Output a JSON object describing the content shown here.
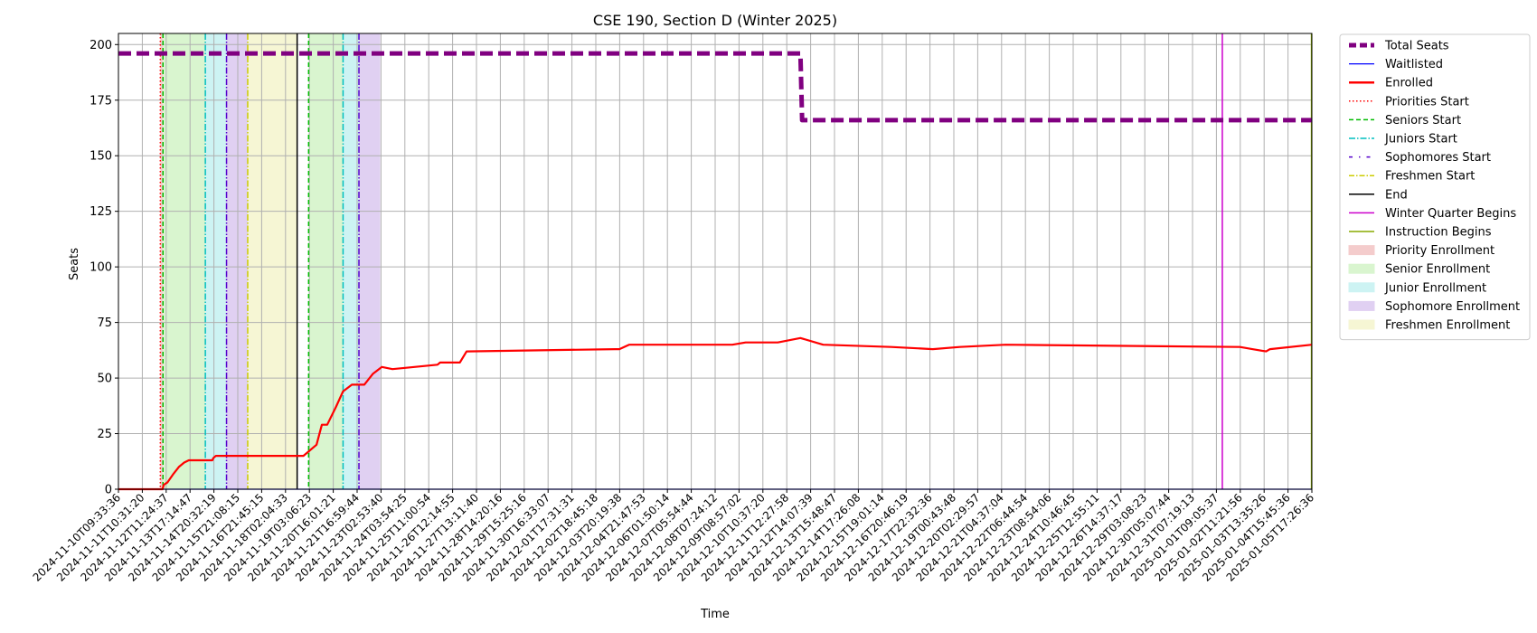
{
  "chart_data": {
    "type": "line",
    "title": "CSE 190, Section D (Winter 2025)",
    "xlabel": "Time",
    "ylabel": "Seats",
    "ylim": [
      0,
      205
    ],
    "yticks": [
      0,
      25,
      50,
      75,
      100,
      125,
      150,
      175,
      200
    ],
    "x_start": "2024-11-10T09:33:36",
    "x_end": "2025-01-05T17:26:36",
    "grid": true,
    "legend_position": "outside-right",
    "xtick_labels": [
      "2024-11-10T09:33:36",
      "2024-11-11T10:31:20",
      "2024-11-12T11:24:37",
      "2024-11-13T17:14:47",
      "2024-11-14T20:32:19",
      "2024-11-15T21:08:15",
      "2024-11-16T21:45:15",
      "2024-11-18T02:04:33",
      "2024-11-19T03:06:23",
      "2024-11-20T16:01:21",
      "2024-11-21T16:59:44",
      "2024-11-23T02:53:40",
      "2024-11-24T03:54:25",
      "2024-11-25T11:00:54",
      "2024-11-26T12:14:55",
      "2024-11-27T13:11:40",
      "2024-11-28T14:20:16",
      "2024-11-29T15:25:16",
      "2024-11-30T16:33:07",
      "2024-12-01T17:31:31",
      "2024-12-02T18:45:18",
      "2024-12-03T20:19:38",
      "2024-12-04T21:47:53",
      "2024-12-06T01:50:14",
      "2024-12-07T05:54:44",
      "2024-12-08T07:24:12",
      "2024-12-09T08:57:02",
      "2024-12-10T10:37:20",
      "2024-12-11T12:27:58",
      "2024-12-12T14:07:39",
      "2024-12-13T15:48:47",
      "2024-12-14T17:26:08",
      "2024-12-15T19:01:14",
      "2024-12-16T20:46:19",
      "2024-12-17T22:32:36",
      "2024-12-19T00:43:48",
      "2024-12-20T02:29:57",
      "2024-12-21T04:37:04",
      "2024-12-22T06:44:54",
      "2024-12-23T08:54:06",
      "2024-12-24T10:46:45",
      "2024-12-25T12:55:11",
      "2024-12-26T14:37:17",
      "2024-12-29T03:08:23",
      "2024-12-30T05:07:44",
      "2024-12-31T07:19:13",
      "2025-01-01T09:05:37",
      "2025-01-02T11:21:56",
      "2025-01-03T13:35:26",
      "2025-01-04T15:45:36",
      "2025-01-05T17:26:36"
    ],
    "series": [
      {
        "name": "Total Seats",
        "color": "#800080",
        "style": "dashed-thick",
        "x": [
          "2024-11-10T09:33:36",
          "2024-12-12T14:07:39",
          "2024-12-12T16:00:00",
          "2025-01-05T17:26:36"
        ],
        "y": [
          196,
          196,
          166,
          166
        ]
      },
      {
        "name": "Waitlisted",
        "color": "#0000ff",
        "style": "solid",
        "x": [
          "2024-11-10T09:33:36",
          "2025-01-05T17:26:36"
        ],
        "y": [
          0,
          0
        ]
      },
      {
        "name": "Enrolled",
        "color": "#ff0000",
        "style": "solid-thick",
        "x": [
          "2024-11-10T09:33:36",
          "2024-11-12T11:24:37",
          "2024-11-12T13:00:00",
          "2024-11-12T17:00:00",
          "2024-11-13T00:00:00",
          "2024-11-13T06:00:00",
          "2024-11-13T12:00:00",
          "2024-11-13T17:14:47",
          "2024-11-14T20:00:00",
          "2024-11-14T21:00:00",
          "2024-11-15T00:00:00",
          "2024-11-19T03:06:23",
          "2024-11-19T18:00:00",
          "2024-11-20T00:00:00",
          "2024-11-20T06:00:00",
          "2024-11-20T16:01:21",
          "2024-11-21T00:00:00",
          "2024-11-21T10:00:00",
          "2024-11-22T00:00:00",
          "2024-11-22T10:00:00",
          "2024-11-22T20:00:00",
          "2024-11-23T08:00:00",
          "2024-11-25T11:00:54",
          "2024-11-25T14:00:00",
          "2024-11-26T12:14:55",
          "2024-11-26T20:00:00",
          "2024-12-03T20:19:38",
          "2024-12-04T01:00:00",
          "2024-12-04T12:00:00",
          "2024-12-09T08:57:02",
          "2024-12-10T00:00:00",
          "2024-12-11T12:27:58",
          "2024-12-12T14:07:39",
          "2024-12-13T15:48:47",
          "2024-12-16T20:46:19",
          "2024-12-18T20:00:00",
          "2024-12-20T02:29:57",
          "2024-12-22T06:44:54",
          "2025-01-02T08:00:00",
          "2025-01-02T22:00:00",
          "2025-01-03T13:35:26",
          "2025-01-03T18:00:00",
          "2025-01-05T17:26:36"
        ],
        "y": [
          0,
          0,
          2,
          3,
          7,
          10,
          12,
          13,
          13,
          14,
          15,
          15,
          20,
          29,
          29,
          37,
          44,
          47,
          47,
          52,
          55,
          54,
          56,
          57,
          57,
          62,
          63,
          63,
          65,
          65,
          66,
          66,
          68,
          65,
          64,
          63,
          64,
          65,
          64,
          63,
          62,
          63,
          65
        ]
      }
    ],
    "phase_lines": [
      {
        "name": "Priorities Start",
        "color": "#ff0000",
        "style": "dotted",
        "x": "2024-11-12T09:00:00"
      },
      {
        "name": "Seniors Start",
        "color": "#00bb00",
        "style": "dashed",
        "x": "2024-11-12T12:00:00"
      },
      {
        "name": "Juniors Start",
        "color": "#00bfbf",
        "style": "dashdot",
        "x": "2024-11-14T12:00:00"
      },
      {
        "name": "Sophomores Start",
        "color": "#5500cc",
        "style": "dashdot",
        "x": "2024-11-15T12:00:00"
      },
      {
        "name": "Freshmen Start",
        "color": "#cccc00",
        "style": "dashdot",
        "x": "2024-11-16T12:00:00"
      },
      {
        "name": "End",
        "color": "#000000",
        "style": "solid",
        "x": "2024-11-18T20:00:00"
      },
      {
        "name": "Seniors Start",
        "color": "#00bb00",
        "style": "dashed",
        "x": "2024-11-19T09:00:00"
      },
      {
        "name": "Juniors Start",
        "color": "#00bfbf",
        "style": "dashdot",
        "x": "2024-11-21T00:00:00"
      },
      {
        "name": "Sophomores Start",
        "color": "#5500cc",
        "style": "dashdot",
        "x": "2024-11-21T18:00:00"
      },
      {
        "name": "Winter Quarter Begins",
        "color": "#cc00cc",
        "style": "solid",
        "x": "2025-01-01T12:00:00"
      },
      {
        "name": "Instruction Begins",
        "color": "#88aa00",
        "style": "solid",
        "x": "2025-01-05T17:00:00"
      }
    ],
    "phase_bands": [
      {
        "name": "Priority Enrollment",
        "color": "#f4cccc",
        "start": "2024-11-12T09:00:00",
        "end": "2024-11-12T12:00:00"
      },
      {
        "name": "Senior Enrollment",
        "color": "#d9f5cf",
        "start": "2024-11-12T12:00:00",
        "end": "2024-11-14T12:00:00"
      },
      {
        "name": "Junior Enrollment",
        "color": "#cdf3f3",
        "start": "2024-11-14T12:00:00",
        "end": "2024-11-15T12:00:00"
      },
      {
        "name": "Sophomore Enrollment",
        "color": "#e0d0f2",
        "start": "2024-11-15T12:00:00",
        "end": "2024-11-16T12:00:00"
      },
      {
        "name": "Freshmen Enrollment",
        "color": "#f6f6d4",
        "start": "2024-11-16T12:00:00",
        "end": "2024-11-18T20:00:00"
      },
      {
        "name": "Senior Enrollment",
        "color": "#d9f5cf",
        "start": "2024-11-19T09:00:00",
        "end": "2024-11-21T00:00:00"
      },
      {
        "name": "Junior Enrollment",
        "color": "#cdf3f3",
        "start": "2024-11-21T00:00:00",
        "end": "2024-11-21T18:00:00"
      },
      {
        "name": "Sophomore Enrollment",
        "color": "#e0d0f2",
        "start": "2024-11-21T18:00:00",
        "end": "2024-11-22T18:00:00"
      }
    ],
    "legend": [
      {
        "label": "Total Seats",
        "kind": "line",
        "color": "#800080",
        "dash": "8,4",
        "width": 5
      },
      {
        "label": "Waitlisted",
        "kind": "line",
        "color": "#0000ff",
        "dash": "",
        "width": 1.2
      },
      {
        "label": "Enrolled",
        "kind": "line",
        "color": "#ff0000",
        "dash": "",
        "width": 2.5
      },
      {
        "label": "Priorities Start",
        "kind": "line",
        "color": "#ff0000",
        "dash": "1.5,2.5",
        "width": 1.5
      },
      {
        "label": "Seniors Start",
        "kind": "line",
        "color": "#00bb00",
        "dash": "5,3",
        "width": 1.5
      },
      {
        "label": "Juniors Start",
        "kind": "line",
        "color": "#00bfbf",
        "dash": "7,2,1.5,2",
        "width": 1.5
      },
      {
        "label": "Sophomores Start",
        "kind": "line",
        "color": "#5500cc",
        "dash": "4,7,1.5,7",
        "width": 1.5
      },
      {
        "label": "Freshmen Start",
        "kind": "line",
        "color": "#cccc00",
        "dash": "6,2,1.5,2",
        "width": 1.5
      },
      {
        "label": "End",
        "kind": "line",
        "color": "#000000",
        "dash": "",
        "width": 1.5
      },
      {
        "label": "Winter Quarter Begins",
        "kind": "line",
        "color": "#cc00cc",
        "dash": "",
        "width": 1.5
      },
      {
        "label": "Instruction Begins",
        "kind": "line",
        "color": "#88aa00",
        "dash": "",
        "width": 1.5
      },
      {
        "label": "Priority Enrollment",
        "kind": "patch",
        "color": "#f4cccc"
      },
      {
        "label": "Senior Enrollment",
        "kind": "patch",
        "color": "#d9f5cf"
      },
      {
        "label": "Junior Enrollment",
        "kind": "patch",
        "color": "#cdf3f3"
      },
      {
        "label": "Sophomore Enrollment",
        "kind": "patch",
        "color": "#e0d0f2"
      },
      {
        "label": "Freshmen Enrollment",
        "kind": "patch",
        "color": "#f6f6d4"
      }
    ]
  }
}
